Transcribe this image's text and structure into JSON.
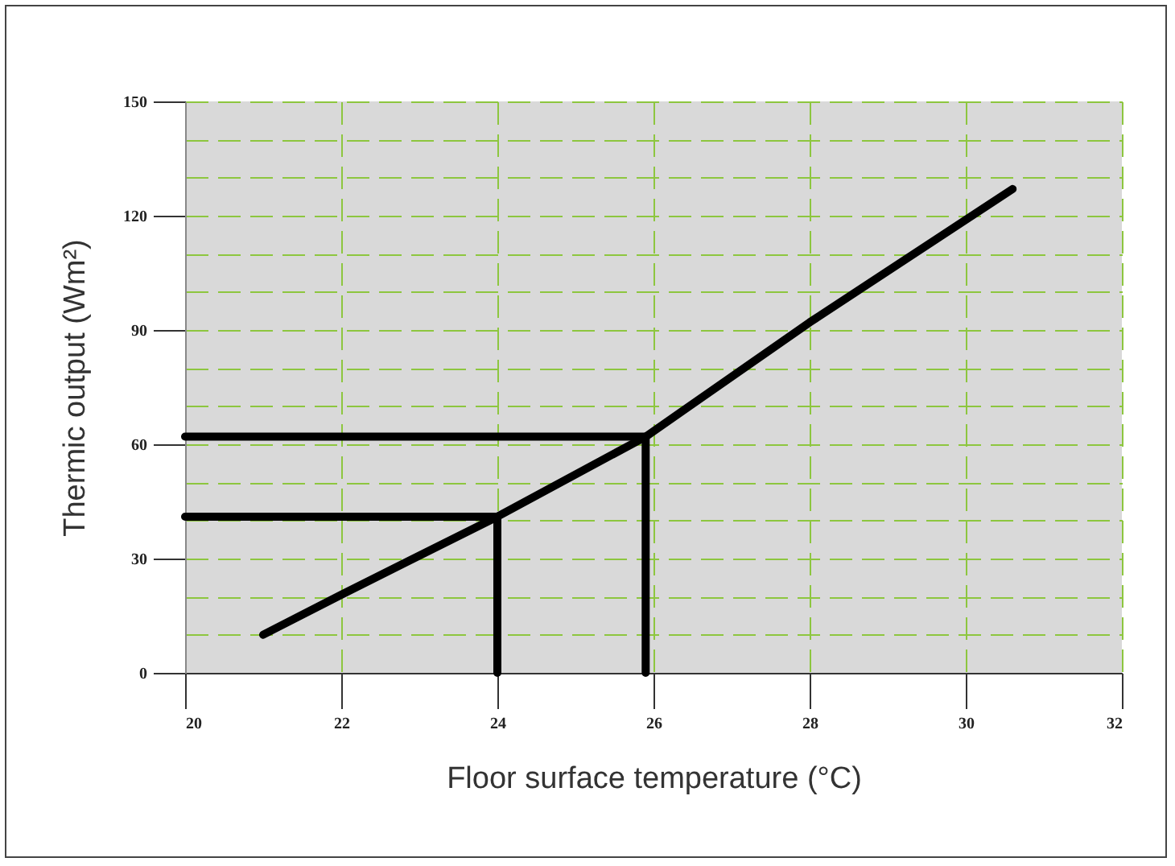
{
  "chart_data": {
    "type": "line",
    "xlabel": "Floor surface temperature (°C)",
    "ylabel": "Thermic output (Wm²)",
    "xlim": [
      20,
      32
    ],
    "xticks": [
      20,
      22,
      24,
      26,
      28,
      30,
      32
    ],
    "ylim": [
      0,
      150
    ],
    "yticks": [
      0,
      {
        "value": 10,
        "label": null
      },
      {
        "value": 20,
        "label": null
      },
      30,
      {
        "value": 40,
        "label": null
      },
      {
        "value": 50,
        "label": null
      },
      60,
      {
        "value": 70,
        "label": null
      },
      {
        "value": 80,
        "label": null
      },
      90,
      {
        "value": 100,
        "label": null
      },
      {
        "value": 110,
        "label": null
      },
      120,
      {
        "value": 130,
        "label": null
      },
      {
        "value": 140,
        "label": null
      },
      150
    ],
    "grid": true,
    "series": [
      {
        "color": "#000000",
        "x": [
          21,
          22,
          24,
          25.9,
          28,
          30.6
        ],
        "values": [
          10,
          20.5,
          41,
          62,
          92,
          127
        ]
      },
      {
        "color": "#000000",
        "x": [
          20,
          24,
          24
        ],
        "values": [
          41,
          41,
          0
        ]
      },
      {
        "color": "#000000",
        "x": [
          20,
          25.9,
          25.9
        ],
        "values": [
          62,
          62,
          0
        ]
      }
    ]
  }
}
